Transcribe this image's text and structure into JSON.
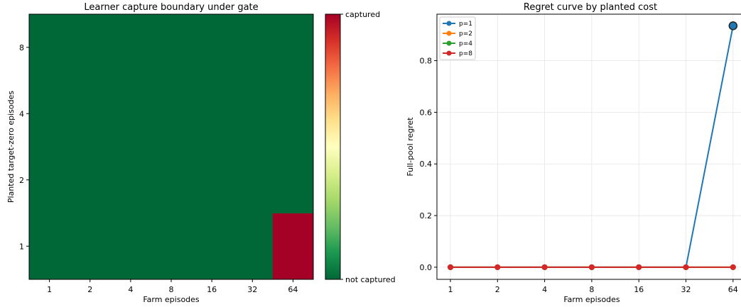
{
  "chart_data": [
    {
      "type": "heatmap",
      "title": "Learner capture boundary under gate",
      "xlabel": "Farm episodes",
      "ylabel": "Planted target-zero episodes",
      "x_categories": [
        "1",
        "2",
        "4",
        "8",
        "16",
        "32",
        "64"
      ],
      "y_categories": [
        "1",
        "2",
        "4",
        "8"
      ],
      "values": [
        [
          0,
          0,
          0,
          0,
          0,
          0,
          1
        ],
        [
          0,
          0,
          0,
          0,
          0,
          0,
          0
        ],
        [
          0,
          0,
          0,
          0,
          0,
          0,
          0
        ],
        [
          0,
          0,
          0,
          0,
          0,
          0,
          0
        ]
      ],
      "colorbar": {
        "top_label": "captured",
        "bottom_label": "not captured",
        "colormap": "RdYlGn_r"
      },
      "colors": {
        "captured": "#a50026",
        "not_captured": "#006837"
      }
    },
    {
      "type": "line",
      "title": "Regret curve by planted cost",
      "xlabel": "Farm episodes",
      "ylabel": "Full-pool regret",
      "categories": [
        "1",
        "2",
        "4",
        "8",
        "16",
        "32",
        "64"
      ],
      "ylim": [
        -0.047,
        0.98
      ],
      "yticks": [
        "0.0",
        "0.2",
        "0.4",
        "0.6",
        "0.8"
      ],
      "grid": true,
      "legend": "top-left",
      "series": [
        {
          "name": "p=1",
          "color": "#1f77b4",
          "values": [
            0,
            0,
            0,
            0,
            0,
            0,
            0.935
          ]
        },
        {
          "name": "p=2",
          "color": "#ff7f0e",
          "values": [
            0,
            0,
            0,
            0,
            0,
            0,
            0
          ]
        },
        {
          "name": "p=4",
          "color": "#2ca02c",
          "values": [
            0,
            0,
            0,
            0,
            0,
            0,
            0
          ]
        },
        {
          "name": "p=8",
          "color": "#d62728",
          "values": [
            0,
            0,
            0,
            0,
            0,
            0,
            0
          ]
        }
      ]
    }
  ]
}
